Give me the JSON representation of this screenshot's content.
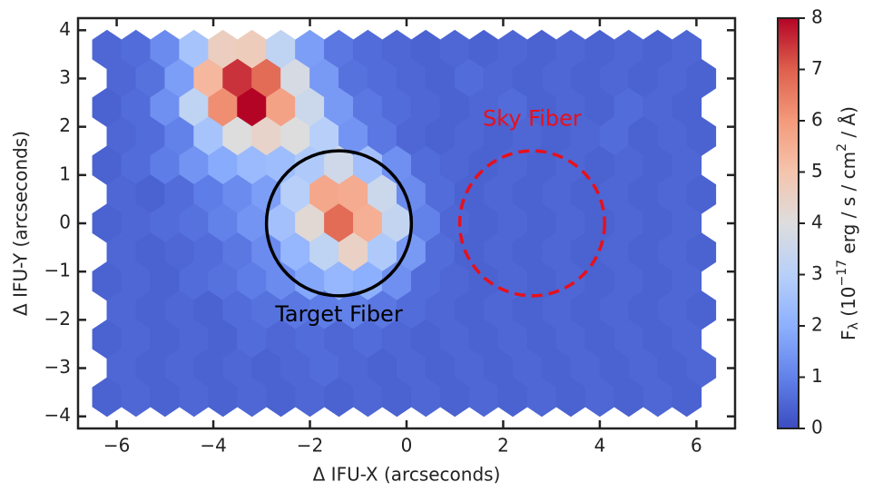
{
  "chart_data": {
    "type": "hexbin",
    "xlabel": "Δ IFU-X (arcseconds)",
    "ylabel": "Δ IFU-Y (arcseconds)",
    "xlim": [
      -6.8,
      6.8
    ],
    "ylim": [
      -4.25,
      4.25
    ],
    "xticks": [
      {
        "value": -6,
        "label": "−6"
      },
      {
        "value": -4,
        "label": "−4"
      },
      {
        "value": -2,
        "label": "−2"
      },
      0,
      2,
      4,
      6
    ],
    "yticks": [
      {
        "value": -4,
        "label": "−4"
      },
      {
        "value": -3,
        "label": "−3"
      },
      {
        "value": -2,
        "label": "−2"
      },
      {
        "value": -1,
        "label": "−1"
      },
      0,
      1,
      2,
      3,
      4
    ],
    "colormap": "coolwarm",
    "clim": [
      0,
      8
    ],
    "cticks": [
      0,
      1,
      2,
      3,
      4,
      5,
      6,
      7,
      8
    ],
    "colorbar_label": [
      "F",
      "λ",
      " (10",
      "−17",
      " erg / s / cm",
      "2",
      " / Å)"
    ],
    "annotations": [
      {
        "text": "Target Fiber",
        "x": -1.4,
        "y": -1.9,
        "color": "#000000"
      },
      {
        "text": "Sky Fiber",
        "x": 2.6,
        "y": 2.15,
        "color": "#e8101a"
      }
    ],
    "circles": [
      {
        "x": -1.4,
        "y": 0,
        "r": 1.5,
        "color": "#000000",
        "dashed": false
      },
      {
        "x": 2.6,
        "y": 0,
        "r": 1.5,
        "color": "#e8101a",
        "dashed": true
      }
    ],
    "rows": [
      {
        "y": 3.6,
        "x": [
          -6.2,
          -5.6,
          -5.0,
          -4.4,
          -3.8,
          -3.2,
          -2.6,
          -2.0,
          -1.4,
          -0.8,
          -0.2,
          0.4,
          1.0,
          1.6,
          2.2,
          2.8,
          3.4,
          4.0,
          4.6,
          5.2,
          5.8
        ],
        "values": [
          0.5,
          0.6,
          1.2,
          2.6,
          4.6,
          4.7,
          3.2,
          1.6,
          0.8,
          0.6,
          0.5,
          0.4,
          0.5,
          0.4,
          0.5,
          0.4,
          0.5,
          0.4,
          0.5,
          0.4,
          0.5
        ]
      },
      {
        "y": 3.0,
        "x": [
          -5.9,
          -5.3,
          -4.7,
          -4.1,
          -3.5,
          -2.9,
          -2.3,
          -1.7,
          -1.1,
          -0.5,
          0.1,
          0.7,
          1.3,
          1.9,
          2.5,
          3.1,
          3.7,
          4.3,
          4.9,
          5.5,
          6.1
        ],
        "values": [
          0.5,
          0.7,
          1.6,
          5.3,
          7.5,
          6.8,
          3.8,
          1.5,
          0.7,
          0.6,
          0.5,
          0.4,
          0.6,
          0.5,
          0.4,
          0.5,
          0.4,
          0.5,
          0.4,
          0.5,
          0.4
        ]
      },
      {
        "y": 2.4,
        "x": [
          -6.2,
          -5.6,
          -5.0,
          -4.4,
          -3.8,
          -3.2,
          -2.6,
          -2.0,
          -1.4,
          -0.8,
          -0.2,
          0.4,
          1.0,
          1.6,
          2.2,
          2.8,
          3.4,
          4.0,
          4.6,
          5.2,
          5.8
        ],
        "values": [
          0.4,
          0.6,
          1.3,
          3.2,
          6.2,
          8.0,
          5.8,
          3.5,
          1.5,
          0.8,
          0.6,
          0.5,
          0.4,
          0.5,
          0.6,
          0.4,
          0.5,
          0.4,
          0.6,
          0.5,
          0.4
        ]
      },
      {
        "y": 1.8,
        "x": [
          -5.9,
          -5.3,
          -4.7,
          -4.1,
          -3.5,
          -2.9,
          -2.3,
          -1.7,
          -1.1,
          -0.5,
          0.1,
          0.7,
          1.3,
          1.9,
          2.5,
          3.1,
          3.7,
          4.3,
          4.9,
          5.5,
          6.1
        ],
        "values": [
          0.5,
          0.6,
          1.0,
          2.6,
          4.0,
          4.4,
          4.0,
          3.0,
          1.4,
          0.8,
          0.5,
          0.4,
          0.5,
          0.4,
          0.5,
          0.4,
          0.5,
          0.6,
          0.4,
          0.5,
          0.4
        ]
      },
      {
        "y": 1.2,
        "x": [
          -6.2,
          -5.6,
          -5.0,
          -4.4,
          -3.8,
          -3.2,
          -2.6,
          -2.0,
          -1.4,
          -0.8,
          -0.2,
          0.4,
          1.0,
          1.6,
          2.2,
          2.8,
          3.4,
          4.0,
          4.6,
          5.2,
          5.8
        ],
        "values": [
          0.4,
          0.6,
          0.9,
          1.4,
          1.9,
          2.3,
          2.4,
          2.8,
          3.6,
          2.5,
          1.3,
          0.6,
          0.5,
          0.4,
          0.5,
          0.4,
          0.5,
          0.4,
          0.5,
          0.4,
          0.5
        ]
      },
      {
        "y": 0.6,
        "x": [
          -5.9,
          -5.3,
          -4.7,
          -4.1,
          -3.5,
          -2.9,
          -2.3,
          -1.7,
          -1.1,
          -0.5,
          0.1,
          0.7,
          1.3,
          1.9,
          2.5,
          3.1,
          3.7,
          4.3,
          4.9,
          5.5,
          6.1
        ],
        "values": [
          0.5,
          0.4,
          0.6,
          0.9,
          1.2,
          1.6,
          3.0,
          5.7,
          5.6,
          3.5,
          1.2,
          0.6,
          0.4,
          0.5,
          0.4,
          0.5,
          0.4,
          0.5,
          0.4,
          0.5,
          0.4
        ]
      },
      {
        "y": 0,
        "x": [
          -6.2,
          -5.6,
          -5.0,
          -4.4,
          -3.8,
          -3.2,
          -2.6,
          -2.0,
          -1.4,
          -0.8,
          -0.2,
          0.4,
          1.0,
          1.6,
          2.2,
          2.8,
          3.4,
          4.0,
          4.6,
          5.2,
          5.8
        ],
        "values": [
          0.4,
          0.5,
          0.6,
          0.7,
          1.0,
          1.4,
          2.5,
          4.2,
          6.8,
          5.5,
          3.3,
          1.0,
          0.5,
          0.4,
          0.5,
          0.4,
          0.5,
          0.4,
          0.5,
          0.4,
          0.5
        ]
      },
      {
        "y": -0.6,
        "x": [
          -5.9,
          -5.3,
          -4.7,
          -4.1,
          -3.5,
          -2.9,
          -2.3,
          -1.7,
          -1.1,
          -0.5,
          0.1,
          0.7,
          1.3,
          1.9,
          2.5,
          3.1,
          3.7,
          4.3,
          4.9,
          5.5,
          6.1
        ],
        "values": [
          0.5,
          0.4,
          0.5,
          0.6,
          0.8,
          1.2,
          2.2,
          3.2,
          4.5,
          2.8,
          1.5,
          0.6,
          0.4,
          0.5,
          0.4,
          0.5,
          0.4,
          0.5,
          0.4,
          0.5,
          0.4
        ]
      },
      {
        "y": -1.2,
        "x": [
          -6.2,
          -5.6,
          -5.0,
          -4.4,
          -3.8,
          -3.2,
          -2.6,
          -2.0,
          -1.4,
          -0.8,
          -0.2,
          0.4,
          1.0,
          1.6,
          2.2,
          2.8,
          3.4,
          4.0,
          4.6,
          5.2,
          5.8
        ],
        "values": [
          0.4,
          0.5,
          0.4,
          0.6,
          0.7,
          0.9,
          1.2,
          1.8,
          2.2,
          2.0,
          1.3,
          0.6,
          0.5,
          0.4,
          0.5,
          0.4,
          0.5,
          0.4,
          0.5,
          0.4,
          0.5
        ]
      },
      {
        "y": -1.8,
        "x": [
          -5.9,
          -5.3,
          -4.7,
          -4.1,
          -3.5,
          -2.9,
          -2.3,
          -1.7,
          -1.1,
          -0.5,
          0.1,
          0.7,
          1.3,
          1.9,
          2.5,
          3.1,
          3.7,
          4.3,
          4.9,
          5.5,
          6.1
        ],
        "values": [
          0.5,
          0.4,
          0.5,
          0.4,
          0.6,
          0.7,
          0.8,
          0.9,
          1.0,
          0.8,
          0.6,
          0.5,
          0.4,
          0.5,
          0.4,
          0.5,
          0.4,
          0.5,
          0.4,
          0.5,
          0.4
        ]
      },
      {
        "y": -2.4,
        "x": [
          -6.2,
          -5.6,
          -5.0,
          -4.4,
          -3.8,
          -3.2,
          -2.6,
          -2.0,
          -1.4,
          -0.8,
          -0.2,
          0.4,
          1.0,
          1.6,
          2.2,
          2.8,
          3.4,
          4.0,
          4.6,
          5.2,
          5.8
        ],
        "values": [
          0.4,
          0.5,
          0.4,
          0.5,
          0.4,
          0.6,
          0.5,
          0.6,
          0.5,
          0.6,
          0.5,
          0.4,
          0.5,
          0.4,
          0.5,
          0.4,
          0.5,
          0.4,
          0.5,
          0.4,
          0.5
        ]
      },
      {
        "y": -3.0,
        "x": [
          -5.9,
          -5.3,
          -4.7,
          -4.1,
          -3.5,
          -2.9,
          -2.3,
          -1.7,
          -1.1,
          -0.5,
          0.1,
          0.7,
          1.3,
          1.9,
          2.5,
          3.1,
          3.7,
          4.3,
          4.9,
          5.5,
          6.1
        ],
        "values": [
          0.5,
          0.4,
          0.5,
          0.4,
          0.5,
          0.4,
          0.5,
          0.6,
          0.5,
          0.4,
          0.5,
          0.4,
          0.5,
          0.4,
          0.5,
          0.4,
          0.5,
          0.4,
          0.5,
          0.4,
          0.5
        ]
      },
      {
        "y": -3.6,
        "x": [
          -6.2,
          -5.6,
          -5.0,
          -4.4,
          -3.8,
          -3.2,
          -2.6,
          -2.0,
          -1.4,
          -0.8,
          -0.2,
          0.4,
          1.0,
          1.6,
          2.2,
          2.8,
          3.4,
          4.0,
          4.6,
          5.2,
          5.8
        ],
        "values": [
          0.4,
          0.5,
          0.4,
          0.5,
          0.4,
          0.5,
          0.4,
          0.5,
          0.4,
          0.5,
          0.4,
          0.5,
          0.4,
          0.5,
          0.4,
          0.5,
          0.4,
          0.5,
          0.4,
          0.5,
          0.4
        ]
      }
    ]
  }
}
